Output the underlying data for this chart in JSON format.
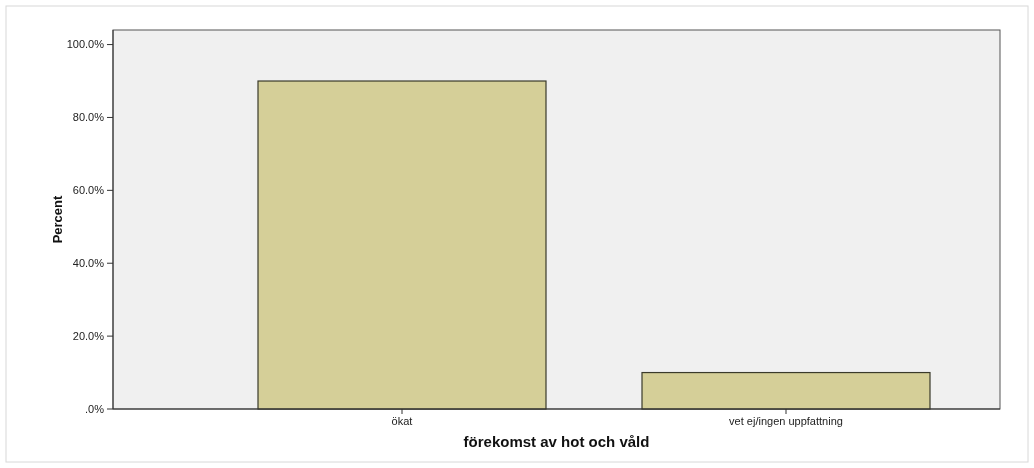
{
  "chart_data": {
    "type": "bar",
    "xlabel": "förekomst av hot och våld",
    "ylabel": "Percent",
    "categories": [
      "ökat",
      "vet ej/ingen uppfattning"
    ],
    "values": [
      90,
      10
    ],
    "color": "#d5cf98",
    "ylim": [
      0,
      104
    ],
    "yticks": [
      {
        "value": 0,
        "label": ".0%"
      },
      {
        "value": 20,
        "label": "20.0%"
      },
      {
        "value": 40,
        "label": "40.0%"
      },
      {
        "value": 60,
        "label": "60.0%"
      },
      {
        "value": 80,
        "label": "80.0%"
      },
      {
        "value": 100,
        "label": "100.0%"
      }
    ],
    "grid": false
  }
}
